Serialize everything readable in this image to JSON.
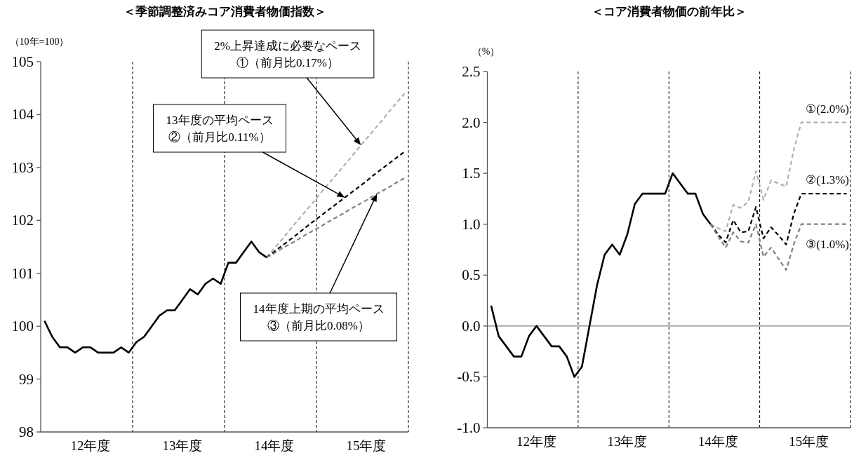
{
  "chart_data": [
    {
      "type": "line",
      "title": "＜季節調整済みコア消費者物価指数＞",
      "ylabel": "（10年=100）",
      "categories": [
        null,
        null,
        null,
        null,
        null,
        null,
        "12年度",
        null,
        null,
        null,
        null,
        null,
        null,
        null,
        null,
        null,
        null,
        null,
        "13年度",
        null,
        null,
        null,
        null,
        null,
        null,
        null,
        null,
        null,
        null,
        null,
        "14年度",
        null,
        null,
        null,
        null,
        null,
        null,
        null,
        null,
        null,
        null,
        null,
        "15年度",
        null,
        null,
        null,
        null,
        null
      ],
      "ylim": [
        98,
        105
      ],
      "yticks": [
        98,
        99,
        100,
        101,
        102,
        103,
        104,
        105
      ],
      "series": [
        {
          "color": "#000000",
          "line_style": "solid",
          "values": [
            100.1,
            99.8,
            99.6,
            99.6,
            99.5,
            99.6,
            99.6,
            99.5,
            99.5,
            99.5,
            99.6,
            99.5,
            99.7,
            99.8,
            100.0,
            100.2,
            100.3,
            100.3,
            100.5,
            100.7,
            100.6,
            100.8,
            100.9,
            100.8,
            101.2,
            101.2,
            101.4,
            101.6,
            101.4,
            101.3,
            null,
            null,
            null,
            null,
            null,
            null,
            null,
            null,
            null,
            null,
            null,
            null,
            null,
            null,
            null,
            null,
            null,
            null
          ]
        },
        {
          "color": "#b0b0b0",
          "line_style": "dashed",
          "values": [
            null,
            null,
            null,
            null,
            null,
            null,
            null,
            null,
            null,
            null,
            null,
            null,
            null,
            null,
            null,
            null,
            null,
            null,
            null,
            null,
            null,
            null,
            null,
            null,
            null,
            null,
            null,
            null,
            null,
            101.3,
            101.47,
            101.64,
            101.82,
            101.99,
            102.16,
            102.33,
            102.51,
            102.68,
            102.85,
            103.02,
            103.19,
            103.37,
            103.54,
            103.71,
            103.88,
            104.06,
            104.23,
            104.4
          ]
        },
        {
          "color": "#000000",
          "line_style": "dashed",
          "values": [
            null,
            null,
            null,
            null,
            null,
            null,
            null,
            null,
            null,
            null,
            null,
            null,
            null,
            null,
            null,
            null,
            null,
            null,
            null,
            null,
            null,
            null,
            null,
            null,
            null,
            null,
            null,
            null,
            null,
            101.3,
            101.41,
            101.52,
            101.63,
            101.74,
            101.86,
            101.97,
            102.08,
            102.19,
            102.3,
            102.41,
            102.52,
            102.63,
            102.74,
            102.86,
            102.97,
            103.08,
            103.19,
            103.3
          ]
        },
        {
          "color": "#808080",
          "line_style": "dashed",
          "values": [
            null,
            null,
            null,
            null,
            null,
            null,
            null,
            null,
            null,
            null,
            null,
            null,
            null,
            null,
            null,
            null,
            null,
            null,
            null,
            null,
            null,
            null,
            null,
            null,
            null,
            null,
            null,
            null,
            null,
            101.3,
            101.38,
            101.47,
            101.55,
            101.63,
            101.72,
            101.8,
            101.88,
            101.97,
            102.05,
            102.13,
            102.22,
            102.3,
            102.38,
            102.47,
            102.55,
            102.63,
            102.72,
            102.8
          ]
        }
      ],
      "annotations": [
        "2%上昇達成に必要なペース\n①（前月比0.17%）",
        "13年度の平均ペース\n②（前月比0.11%）",
        "14年度上期の平均ペース\n③（前月比0.08%）"
      ]
    },
    {
      "type": "line",
      "title": "＜コア消費者物価の前年比＞",
      "ylabel": "（%）",
      "categories": [
        null,
        null,
        null,
        null,
        null,
        null,
        "12年度",
        null,
        null,
        null,
        null,
        null,
        null,
        null,
        null,
        null,
        null,
        null,
        "13年度",
        null,
        null,
        null,
        null,
        null,
        null,
        null,
        null,
        null,
        null,
        null,
        "14年度",
        null,
        null,
        null,
        null,
        null,
        null,
        null,
        null,
        null,
        null,
        null,
        "15年度",
        null,
        null,
        null,
        null,
        null
      ],
      "ylim": [
        -1,
        2.5
      ],
      "yticks": [
        {
          "value": -1,
          "label": "-1.0"
        },
        {
          "value": -0.5,
          "label": "-0.5"
        },
        {
          "value": 0,
          "label": "0.0"
        },
        0.5,
        {
          "value": 1,
          "label": "1.0"
        },
        1.5,
        {
          "value": 2,
          "label": "2.0"
        },
        2.5
      ],
      "ref_lines": [
        {
          "axis": "y",
          "value": 0,
          "color": "#808080",
          "line_style": "solid"
        }
      ],
      "series": [
        {
          "color": "#000000",
          "line_style": "solid",
          "values": [
            0.2,
            -0.1,
            -0.2,
            -0.3,
            -0.3,
            -0.1,
            0.0,
            -0.1,
            -0.2,
            -0.2,
            -0.3,
            -0.5,
            -0.4,
            0.0,
            0.4,
            0.7,
            0.8,
            0.7,
            0.9,
            1.2,
            1.3,
            1.3,
            1.3,
            1.3,
            1.5,
            1.4,
            1.3,
            1.3,
            1.1,
            1.0,
            null,
            null,
            null,
            null,
            null,
            null,
            null,
            null,
            null,
            null,
            null,
            null,
            null,
            null,
            null,
            null,
            null,
            null
          ]
        },
        {
          "color": "#b0b0b0",
          "line_style": "dashed",
          "values": [
            null,
            null,
            null,
            null,
            null,
            null,
            null,
            null,
            null,
            null,
            null,
            null,
            null,
            null,
            null,
            null,
            null,
            null,
            null,
            null,
            null,
            null,
            null,
            null,
            null,
            null,
            null,
            null,
            null,
            1.0,
            0.96,
            0.93,
            1.19,
            1.16,
            1.22,
            1.52,
            1.24,
            1.43,
            1.4,
            1.37,
            1.73,
            2.0,
            2.0,
            2.0,
            2.0,
            2.0,
            2.0,
            2.0
          ]
        },
        {
          "color": "#000000",
          "line_style": "dashed",
          "values": [
            null,
            null,
            null,
            null,
            null,
            null,
            null,
            null,
            null,
            null,
            null,
            null,
            null,
            null,
            null,
            null,
            null,
            null,
            null,
            null,
            null,
            null,
            null,
            null,
            null,
            null,
            null,
            null,
            null,
            1.0,
            0.9,
            0.82,
            1.04,
            0.92,
            0.93,
            1.17,
            0.86,
            0.97,
            0.89,
            0.8,
            1.1,
            1.3,
            1.3,
            1.3,
            1.3,
            1.3,
            1.3,
            1.3
          ]
        },
        {
          "color": "#808080",
          "line_style": "dashed",
          "values": [
            null,
            null,
            null,
            null,
            null,
            null,
            null,
            null,
            null,
            null,
            null,
            null,
            null,
            null,
            null,
            null,
            null,
            null,
            null,
            null,
            null,
            null,
            null,
            null,
            null,
            null,
            null,
            null,
            null,
            1.0,
            0.88,
            0.77,
            0.92,
            0.83,
            0.82,
            1.0,
            0.68,
            0.77,
            0.66,
            0.55,
            0.8,
            1.0,
            1.0,
            1.0,
            1.0,
            1.0,
            1.0,
            1.0
          ]
        }
      ],
      "annotations": [
        {
          "text": "①(2.0%)",
          "y": 2.0
        },
        {
          "text": "②(1.3%)",
          "y": 1.3
        },
        {
          "text": "③(1.0%)",
          "y": 1.0
        }
      ]
    }
  ]
}
